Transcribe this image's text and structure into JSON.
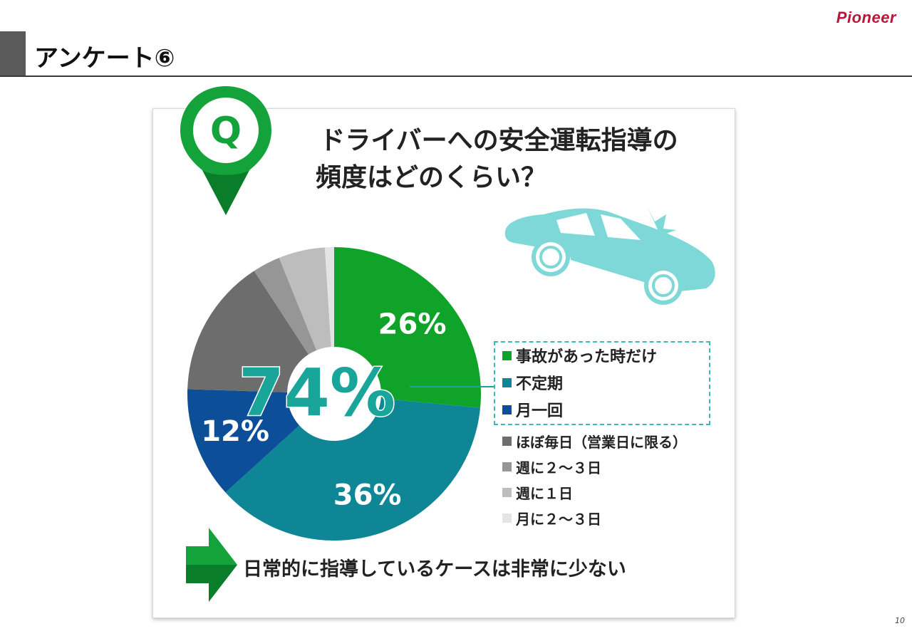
{
  "brand": "Pioneer",
  "page_title": "アンケート⑥",
  "page_number": "10",
  "question": {
    "badge": "Q",
    "line1": "ドライバーへの安全運転指導の",
    "line2": "頻度はどのくらい？"
  },
  "highlight": {
    "value": "74%"
  },
  "conclusion": "日常的に指導しているケースは非常に少ない",
  "chart_data": {
    "type": "pie",
    "style": "donut",
    "categories": [
      "事故があった時だけ",
      "不定期",
      "月一回",
      "ほぼ毎日（営業日に限る）",
      "週に２～３日",
      "週に１日",
      "月に２～３日"
    ],
    "values": [
      26,
      36,
      12,
      15,
      3,
      5,
      1
    ],
    "data_labels": [
      "26%",
      "36%",
      "12%",
      "",
      "",
      "",
      ""
    ],
    "colors": [
      "#0fa32a",
      "#0e8695",
      "#0d4e98",
      "#6d6d6d",
      "#969696",
      "#bdbdbd",
      "#e4e4e4"
    ],
    "legend_position": "right",
    "highlighted_group": [
      "事故があった時だけ",
      "不定期",
      "月一回"
    ],
    "highlighted_total": "74%"
  }
}
